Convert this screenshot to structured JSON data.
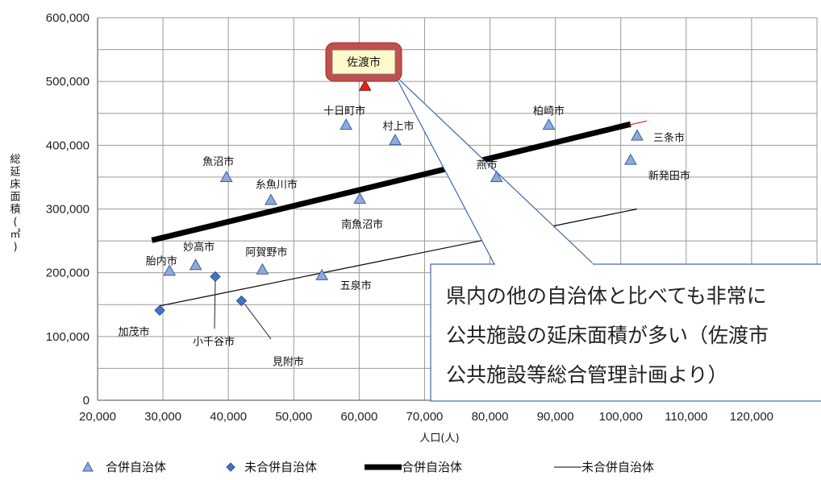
{
  "chart_data": {
    "type": "scatter",
    "xlabel": "人口(人)",
    "ylabel": "総延床面積(㎡)",
    "xlim": [
      20000,
      130000
    ],
    "ylim": [
      0,
      600000
    ],
    "x_ticks": [
      "20,000",
      "30,000",
      "40,000",
      "50,000",
      "60,000",
      "70,000",
      "80,000",
      "90,000",
      "100,000",
      "110,000",
      "120,000"
    ],
    "y_ticks": [
      "0",
      "100,000",
      "200,000",
      "300,000",
      "400,000",
      "500,000",
      "600,000"
    ],
    "grid": true,
    "legend_position": "bottom",
    "series": [
      {
        "name": "合併自治体",
        "marker": "triangle",
        "color": "#8eaadb",
        "points": [
          {
            "label": "佐渡市",
            "x": 60900,
            "y": 493000,
            "highlight": true
          },
          {
            "label": "十日町市",
            "x": 58000,
            "y": 432000
          },
          {
            "label": "村上市",
            "x": 65500,
            "y": 408000
          },
          {
            "label": "柏崎市",
            "x": 89000,
            "y": 432000
          },
          {
            "label": "三条市",
            "x": 102500,
            "y": 415000
          },
          {
            "label": "新発田市",
            "x": 101500,
            "y": 377000
          },
          {
            "label": "燕市",
            "x": 81000,
            "y": 350000
          },
          {
            "label": "魚沼市",
            "x": 39700,
            "y": 350000
          },
          {
            "label": "糸魚川市",
            "x": 46500,
            "y": 314000
          },
          {
            "label": "南魚沼市",
            "x": 60100,
            "y": 316000
          },
          {
            "label": "胎内市",
            "x": 31000,
            "y": 203000
          },
          {
            "label": "妙高市",
            "x": 35000,
            "y": 212000
          },
          {
            "label": "阿賀野市",
            "x": 45200,
            "y": 205000
          },
          {
            "label": "五泉市",
            "x": 54300,
            "y": 196000
          }
        ]
      },
      {
        "name": "未合併自治体",
        "marker": "diamond",
        "color": "#4472c4",
        "points": [
          {
            "label": "加茂市",
            "x": 29500,
            "y": 141000
          },
          {
            "label": "小千谷市",
            "x": 38000,
            "y": 194000
          },
          {
            "label": "見附市",
            "x": 42000,
            "y": 156000
          }
        ]
      },
      {
        "name": "合併自治体",
        "kind": "trendline",
        "color": "#000000",
        "x": [
          28300,
          101500
        ],
        "y": [
          251000,
          433000
        ]
      },
      {
        "name": "未合併自治体",
        "kind": "trendline",
        "color": "#000000",
        "x": [
          29500,
          102500
        ],
        "y": [
          148000,
          300000
        ]
      }
    ],
    "annotation": {
      "callout_text_lines": [
        "県内の他の自治体と比べても非常に",
        "公共施設の延床面積が多い（佐渡市",
        "公共施設等総合管理計画より）"
      ],
      "highlight_label": "佐渡市"
    }
  }
}
